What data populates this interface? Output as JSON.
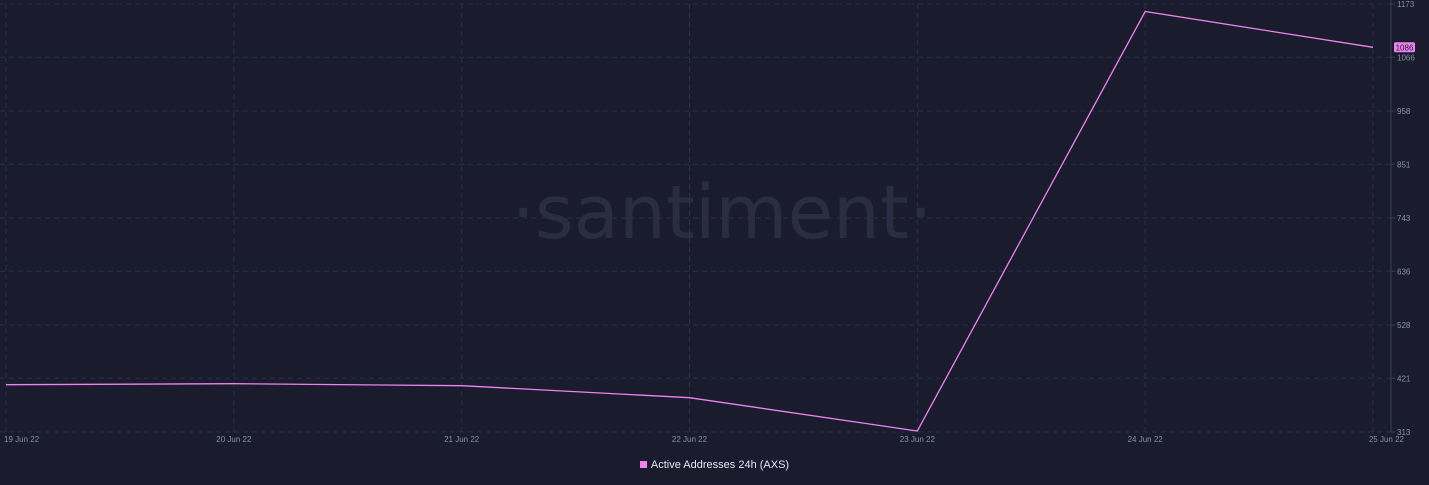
{
  "watermark": "·santiment·",
  "colors": {
    "background": "#1a1c2e",
    "grid": "#2b2e45",
    "series": "#ee82ee"
  },
  "chart_data": {
    "type": "line",
    "x": [
      "19 Jun 22",
      "20 Jun 22",
      "21 Jun 22",
      "22 Jun 22",
      "23 Jun 22",
      "24 Jun 22",
      "25 Jun 22"
    ],
    "x_tick_labels": [
      "19 Jun 22",
      "20 Jun 22",
      "21 Jun 22",
      "22 Jun 22",
      "23 Jun 22",
      "24 Jun 22",
      "25 Jun 22"
    ],
    "series": [
      {
        "name": "Active Addresses 24h (AXS)",
        "color": "#ee82ee",
        "values": [
          408,
          410,
          406,
          382,
          315,
          1158,
          1086
        ]
      }
    ],
    "y_ticks": [
      1173,
      1066,
      958,
      851,
      743,
      636,
      528,
      421,
      313
    ],
    "ylim": [
      313,
      1173
    ],
    "last_value_label": "1086",
    "grid": true,
    "legend_position": "bottom-center"
  }
}
